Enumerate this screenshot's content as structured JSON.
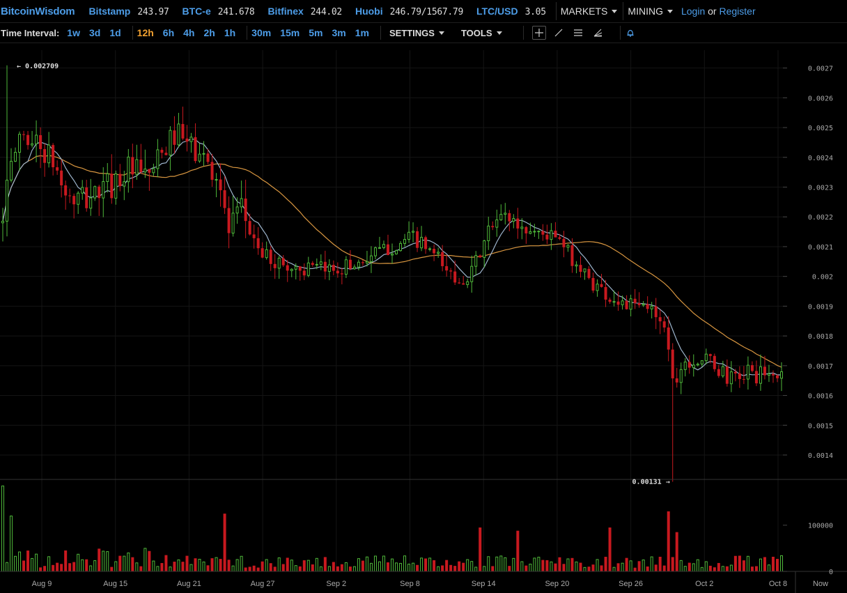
{
  "header": {
    "brand": "BitcoinWisdom",
    "tickers": [
      {
        "name": "Bitstamp",
        "price": "243.97"
      },
      {
        "name": "BTC-e",
        "price": "241.678"
      },
      {
        "name": "Bitfinex",
        "price": "244.02"
      },
      {
        "name": "Huobi",
        "price": "246.79/1567.79"
      },
      {
        "name": "LTC/USD",
        "price": "3.05"
      }
    ],
    "menus": [
      "MARKETS",
      "MINING"
    ],
    "login": "Login",
    "or": "or",
    "register": "Register"
  },
  "toolbar": {
    "interval_label": "Time Interval:",
    "intervals": [
      "1w",
      "3d",
      "1d",
      "12h",
      "6h",
      "4h",
      "2h",
      "1h",
      "30m",
      "15m",
      "5m",
      "3m",
      "1m"
    ],
    "active_interval": "12h",
    "settings": "SETTINGS",
    "tools": "TOOLS",
    "tool_icons": [
      "crosshair-icon",
      "trendline-icon",
      "fib-lines-icon",
      "fan-icon",
      "bell-icon"
    ]
  },
  "chart_data": {
    "type": "candlestick",
    "price_axis": {
      "ticks": [
        "0.0027",
        "0.0026",
        "0.0025",
        "0.0024",
        "0.0023",
        "0.0022",
        "0.0021",
        "0.002",
        "0.0019",
        "0.0018",
        "0.0017",
        "0.0016",
        "0.0015",
        "0.0014"
      ],
      "range": [
        0.001318,
        0.00276
      ]
    },
    "volume_axis": {
      "ticks": [
        "100000",
        "0"
      ],
      "range": [
        0,
        190000
      ]
    },
    "date_ticks": [
      "Aug 9",
      "Aug 15",
      "Aug 21",
      "Aug 27",
      "Sep 2",
      "Sep 8",
      "Sep 14",
      "Sep 20",
      "Sep 26",
      "Oct 2",
      "Oct 8"
    ],
    "now_label": "Now",
    "high_marker": {
      "label": "0.002709",
      "value": 0.002709
    },
    "low_marker": {
      "label": "0.00131",
      "value": 0.00131
    },
    "colors": {
      "up": "#4fb83a",
      "down": "#c8191f",
      "ma_fast": "#9db4cc",
      "ma_slow": "#d89640",
      "grid": "#151515"
    },
    "waypoints": [
      {
        "i": 0,
        "c": 0.00223
      },
      {
        "i": 4,
        "c": 0.00248
      },
      {
        "i": 8,
        "c": 0.00245
      },
      {
        "i": 12,
        "c": 0.00238
      },
      {
        "i": 16,
        "c": 0.00225
      },
      {
        "i": 20,
        "c": 0.00226
      },
      {
        "i": 26,
        "c": 0.00231
      },
      {
        "i": 30,
        "c": 0.00236
      },
      {
        "i": 34,
        "c": 0.00233
      },
      {
        "i": 38,
        "c": 0.0024
      },
      {
        "i": 41,
        "c": 0.00248
      },
      {
        "i": 46,
        "c": 0.00242
      },
      {
        "i": 51,
        "c": 0.00235
      },
      {
        "i": 54,
        "c": 0.00215
      },
      {
        "i": 57,
        "c": 0.00222
      },
      {
        "i": 62,
        "c": 0.00207
      },
      {
        "i": 68,
        "c": 0.00203
      },
      {
        "i": 75,
        "c": 0.00202
      },
      {
        "i": 80,
        "c": 0.00203
      },
      {
        "i": 84,
        "c": 0.00204
      },
      {
        "i": 88,
        "c": 0.00207
      },
      {
        "i": 93,
        "c": 0.0021
      },
      {
        "i": 98,
        "c": 0.00213
      },
      {
        "i": 103,
        "c": 0.00207
      },
      {
        "i": 108,
        "c": 0.00199
      },
      {
        "i": 112,
        "c": 0.00201
      },
      {
        "i": 116,
        "c": 0.00215
      },
      {
        "i": 120,
        "c": 0.00221
      },
      {
        "i": 124,
        "c": 0.00216
      },
      {
        "i": 128,
        "c": 0.00215
      },
      {
        "i": 132,
        "c": 0.00213
      },
      {
        "i": 136,
        "c": 0.00206
      },
      {
        "i": 140,
        "c": 0.00199
      },
      {
        "i": 145,
        "c": 0.00193
      },
      {
        "i": 150,
        "c": 0.0019
      },
      {
        "i": 155,
        "c": 0.00189
      },
      {
        "i": 158,
        "c": 0.00185
      },
      {
        "i": 160,
        "c": 0.00165
      },
      {
        "i": 163,
        "c": 0.00172
      },
      {
        "i": 167,
        "c": 0.00172
      },
      {
        "i": 170,
        "c": 0.0017
      },
      {
        "i": 174,
        "c": 0.00165
      },
      {
        "i": 178,
        "c": 0.00168
      },
      {
        "i": 182,
        "c": 0.00166
      },
      {
        "i": 185,
        "c": 0.00167
      }
    ],
    "volume_spikes": [
      {
        "i": 0,
        "v": 185000
      },
      {
        "i": 2,
        "v": 120000
      },
      {
        "i": 53,
        "v": 125000
      },
      {
        "i": 114,
        "v": 95000
      },
      {
        "i": 123,
        "v": 88000
      },
      {
        "i": 145,
        "v": 95000
      },
      {
        "i": 159,
        "v": 130000
      },
      {
        "i": 161,
        "v": 85000
      }
    ]
  }
}
